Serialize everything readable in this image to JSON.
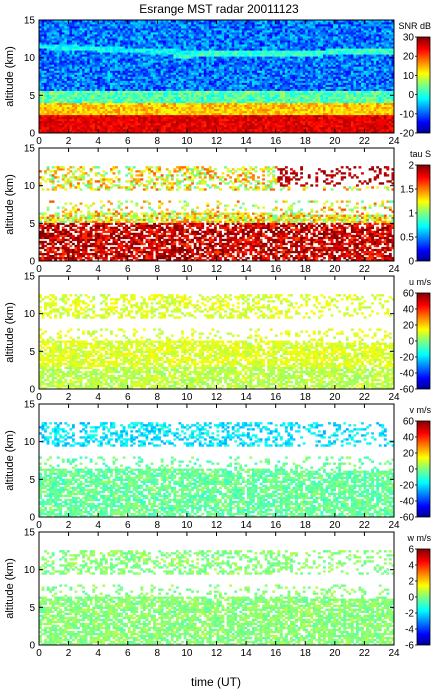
{
  "title": "Esrange MST radar 20011123",
  "xlabel": "time (UT)",
  "chart_data": [
    {
      "type": "heatmap",
      "variable": "SNR",
      "ylabel": "altitude (km)",
      "colorbar_label": "SNR dB",
      "xlim": [
        0,
        24
      ],
      "ylim": [
        0,
        15
      ],
      "clim": [
        -20,
        30
      ],
      "x_ticks": [
        0,
        2,
        4,
        6,
        8,
        10,
        12,
        14,
        16,
        18,
        20,
        22,
        24
      ],
      "y_ticks": [
        0,
        5,
        10,
        15
      ],
      "colorbar_ticks": [
        -20,
        -10,
        0,
        10,
        20,
        30
      ]
    },
    {
      "type": "heatmap",
      "variable": "tau",
      "ylabel": "altitude (km)",
      "colorbar_label": "tau S",
      "xlim": [
        0,
        24
      ],
      "ylim": [
        0,
        15
      ],
      "clim": [
        0,
        2
      ],
      "x_ticks": [
        0,
        2,
        4,
        6,
        8,
        10,
        12,
        14,
        16,
        18,
        20,
        22,
        24
      ],
      "y_ticks": [
        0,
        5,
        10,
        15
      ],
      "colorbar_ticks": [
        0,
        0.5,
        1,
        1.5,
        2
      ]
    },
    {
      "type": "heatmap",
      "variable": "u",
      "ylabel": "altitude (km)",
      "colorbar_label": "u m/s",
      "xlim": [
        0,
        24
      ],
      "ylim": [
        0,
        15
      ],
      "clim": [
        -60,
        60
      ],
      "x_ticks": [
        0,
        2,
        4,
        6,
        8,
        10,
        12,
        14,
        16,
        18,
        20,
        22,
        24
      ],
      "y_ticks": [
        0,
        5,
        10,
        15
      ],
      "colorbar_ticks": [
        -60,
        -40,
        -20,
        0,
        20,
        40,
        60
      ]
    },
    {
      "type": "heatmap",
      "variable": "v",
      "ylabel": "altitude (km)",
      "colorbar_label": "v m/s",
      "xlim": [
        0,
        24
      ],
      "ylim": [
        0,
        15
      ],
      "clim": [
        -60,
        60
      ],
      "x_ticks": [
        0,
        2,
        4,
        6,
        8,
        10,
        12,
        14,
        16,
        18,
        20,
        22,
        24
      ],
      "y_ticks": [
        0,
        5,
        10,
        15
      ],
      "colorbar_ticks": [
        -60,
        -40,
        -20,
        0,
        20,
        40,
        60
      ]
    },
    {
      "type": "heatmap",
      "variable": "w",
      "ylabel": "altitude (km)",
      "colorbar_label": "w m/s",
      "xlim": [
        0,
        24
      ],
      "ylim": [
        0,
        15
      ],
      "clim": [
        -6,
        6
      ],
      "x_ticks": [
        0,
        2,
        4,
        6,
        8,
        10,
        12,
        14,
        16,
        18,
        20,
        22,
        24
      ],
      "y_ticks": [
        0,
        5,
        10,
        15
      ],
      "colorbar_ticks": [
        -6,
        -4,
        -2,
        0,
        2,
        4,
        6
      ]
    }
  ]
}
